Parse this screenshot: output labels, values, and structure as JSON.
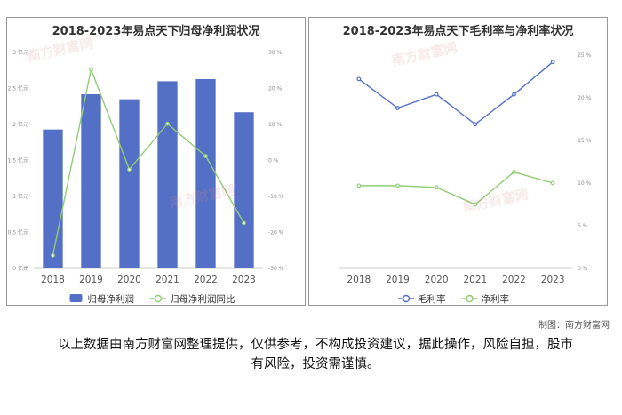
{
  "watermark": "南方财富网",
  "credit": "制图：南方财富网",
  "disclaimer": "以上数据由南方财富网整理提供，仅供参考，不构成投资建议，据此操作，风险自担，股市有风险，投资需谨慎。",
  "chart_data": [
    {
      "type": "bar",
      "title": "2018-2023年易点天下归母净利润状况",
      "categories": [
        "2018",
        "2019",
        "2020",
        "2021",
        "2022",
        "2023"
      ],
      "series": [
        {
          "name": "归母净利润",
          "type": "bar",
          "axis": "left",
          "color": "#5470c6",
          "values": [
            1.93,
            2.42,
            2.35,
            2.6,
            2.63,
            2.17
          ]
        },
        {
          "name": "归母净利润同比",
          "type": "line",
          "axis": "right",
          "color": "#91cc75",
          "values": [
            -26.4,
            25.3,
            -2.5,
            10.2,
            1.2,
            -17.4
          ]
        }
      ],
      "left_axis": {
        "ticks": [
          "0 亿元",
          "0.5 亿元",
          "1 亿元",
          "1.5 亿元",
          "2 亿元",
          "2.5 亿元",
          "3 亿元"
        ],
        "ylim": [
          0,
          3
        ]
      },
      "right_axis": {
        "ticks": [
          "-30 %",
          "-20 %",
          "-10 %",
          "0 %",
          "10 %",
          "20 %",
          "30 %"
        ],
        "ylim": [
          -30,
          30
        ]
      },
      "legend": "bottom",
      "grid": false
    },
    {
      "type": "line",
      "title": "2018-2023年易点天下毛利率与净利率状况",
      "categories": [
        "2018",
        "2019",
        "2020",
        "2021",
        "2022",
        "2023"
      ],
      "series": [
        {
          "name": "毛利率",
          "color": "#5470c6",
          "values": [
            22.2,
            18.8,
            20.4,
            16.9,
            20.4,
            24.2
          ]
        },
        {
          "name": "净利率",
          "color": "#91cc75",
          "values": [
            9.7,
            9.7,
            9.5,
            7.5,
            11.3,
            10.0
          ]
        }
      ],
      "right_axis": {
        "ticks": [
          "0 %",
          "5 %",
          "10 %",
          "15 %",
          "20 %",
          "25 %"
        ],
        "ylim": [
          0,
          25
        ]
      },
      "legend": "bottom",
      "grid": false
    }
  ]
}
